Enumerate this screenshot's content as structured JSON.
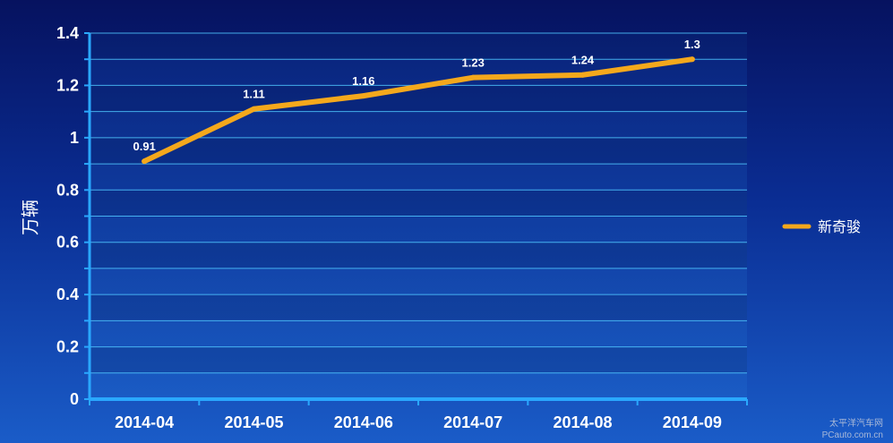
{
  "chart_data": {
    "type": "line",
    "title": "",
    "xlabel": "",
    "ylabel": "万辆",
    "categories": [
      "2014-04",
      "2014-05",
      "2014-06",
      "2014-07",
      "2014-08",
      "2014-09"
    ],
    "series": [
      {
        "name": "新奇骏",
        "values": [
          0.91,
          1.11,
          1.16,
          1.23,
          1.24,
          1.3
        ],
        "labels": [
          "0.91",
          "1.11",
          "1.16",
          "1.23",
          "1.24",
          "1.3"
        ]
      }
    ],
    "ylim": [
      0,
      1.4
    ],
    "yticks": [
      0,
      0.2,
      0.4,
      0.6,
      0.8,
      1,
      1.2,
      1.4
    ],
    "ytick_labels": [
      "0",
      "0.2",
      "0.4",
      "0.6",
      "0.8",
      "1",
      "1.2",
      "1.4"
    ],
    "grid": true,
    "legend": "right",
    "colors": {
      "series": "#f4a81c",
      "grid": "#4fc6ff",
      "axis": "#2aa8ff"
    }
  },
  "watermark": {
    "line1": "太平洋汽车网",
    "line2": "PCauto.com.cn"
  }
}
